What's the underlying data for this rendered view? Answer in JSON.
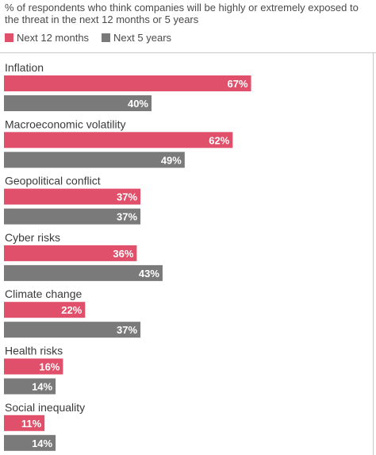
{
  "chart_data": {
    "type": "bar",
    "orientation": "horizontal",
    "title": "% of respondents who think companies will be highly or extremely exposed to the threat in the next 12 months or 5 years",
    "categories": [
      "Inflation",
      "Macroeconomic volatility",
      "Geopolitical conflict",
      "Cyber risks",
      "Climate change",
      "Health risks",
      "Social inequality"
    ],
    "series": [
      {
        "name": "Next 12 months",
        "color": "#e0506a",
        "values": [
          67,
          62,
          37,
          36,
          22,
          16,
          11
        ]
      },
      {
        "name": "Next 5 years",
        "color": "#7a7a7a",
        "values": [
          40,
          49,
          37,
          43,
          37,
          14,
          14
        ]
      }
    ],
    "value_suffix": "%",
    "track_color": "#ffffff",
    "xlim": [
      0,
      100
    ],
    "grid": false,
    "legend_position": "top-left"
  }
}
